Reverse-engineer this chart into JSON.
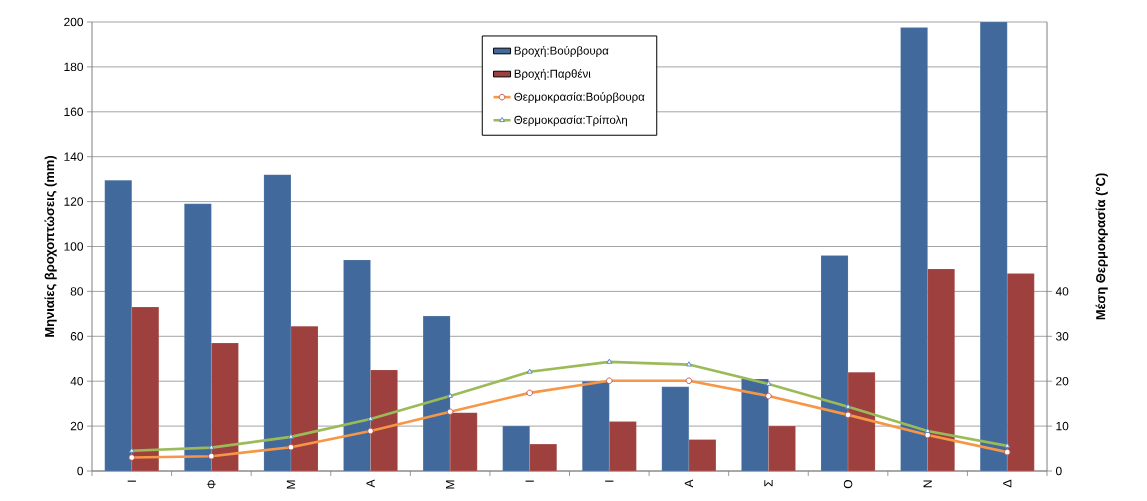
{
  "chart_data": {
    "type": "bar",
    "categories": [
      "Ι",
      "Φ",
      "Μ",
      "Α",
      "Μ",
      "Ι",
      "Ι",
      "Α",
      "Σ",
      "Ο",
      "Ν",
      "Δ"
    ],
    "ylabel": "Μηνιαίες βροχοπτώσεις (mm)",
    "y2label": "Μέση Θερμοκρασία (°C)",
    "ylim": [
      0,
      200
    ],
    "yticks": [
      0,
      20,
      40,
      60,
      80,
      100,
      120,
      140,
      160,
      180,
      200
    ],
    "y2lim": [
      0,
      100
    ],
    "y2ticks": [
      0,
      10,
      20,
      30,
      40
    ],
    "grid": "y",
    "legend": "top",
    "series": [
      {
        "name": "Βροχή:Βούρβουρα",
        "color": "#41699b",
        "values": [
          129.5,
          119,
          132,
          94,
          69,
          20,
          40,
          37.5,
          41,
          96,
          197.5,
          200
        ]
      },
      {
        "name": "Βροχή:Παρθένι",
        "color": "#9e413e",
        "values": [
          73,
          57,
          64.5,
          45,
          26,
          12,
          22,
          14,
          20,
          44,
          90,
          88
        ]
      },
      {
        "name": "Θερμοκρασία:Βούρβουρα",
        "type": "line",
        "axis": "y2",
        "marker": "circle",
        "color": "#f79646",
        "values": [
          3,
          3.3,
          5.3,
          8.9,
          13.2,
          17.4,
          20.1,
          20.1,
          16.7,
          12.5,
          8,
          4.2
        ]
      },
      {
        "name": "Θερμοκρασία:Τρίπολη",
        "type": "line",
        "axis": "y2",
        "marker": "triangle",
        "color": "#9bbb59",
        "values": [
          4.5,
          5.2,
          7.6,
          11.6,
          16.7,
          22.1,
          24.3,
          23.7,
          19.4,
          14.3,
          8.9,
          5.6
        ]
      }
    ]
  }
}
